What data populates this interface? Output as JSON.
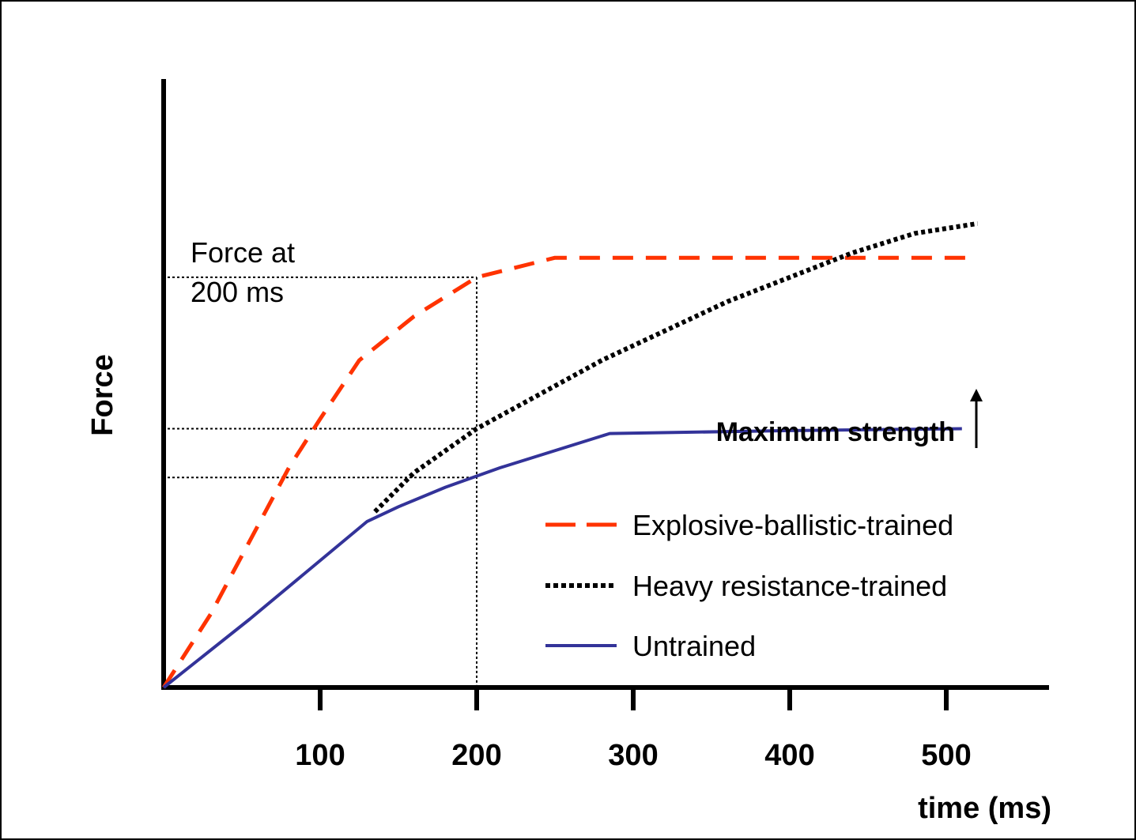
{
  "chart_data": {
    "type": "line",
    "title": "",
    "xlabel": "time (ms)",
    "ylabel": "Force",
    "x_ticks": [
      "100",
      "200",
      "300",
      "400",
      "500"
    ],
    "xlim": [
      0,
      560
    ],
    "ylim": [
      0,
      100
    ],
    "grid": false,
    "legend_position": "lower-right",
    "series": [
      {
        "name": "Explosive-ballistic-trained",
        "style": "dashed",
        "color": "#ff3300",
        "points": [
          [
            0,
            0
          ],
          [
            30,
            15
          ],
          [
            60,
            33
          ],
          [
            80,
            45
          ],
          [
            100,
            55
          ],
          [
            125,
            67
          ],
          [
            160,
            76
          ],
          [
            200,
            84
          ],
          [
            250,
            88
          ],
          [
            300,
            88
          ],
          [
            400,
            88
          ],
          [
            520,
            88
          ]
        ]
      },
      {
        "name": "Heavy resistance-trained",
        "style": "dotted",
        "color": "#000000",
        "points": [
          [
            135,
            36
          ],
          [
            160,
            44
          ],
          [
            200,
            53
          ],
          [
            240,
            60
          ],
          [
            280,
            67
          ],
          [
            320,
            73
          ],
          [
            360,
            79
          ],
          [
            400,
            84
          ],
          [
            440,
            89
          ],
          [
            480,
            93
          ],
          [
            520,
            95
          ]
        ]
      },
      {
        "name": "Untrained",
        "style": "solid",
        "color": "#333399",
        "points": [
          [
            0,
            0
          ],
          [
            55,
            14
          ],
          [
            130,
            34
          ],
          [
            150,
            37
          ],
          [
            180,
            41
          ],
          [
            215,
            45
          ],
          [
            285,
            52
          ],
          [
            400,
            52.6
          ],
          [
            510,
            53
          ]
        ]
      }
    ],
    "annotations": [
      {
        "text_lines": [
          "Force at",
          "200 ms"
        ]
      },
      {
        "text": "Maximum strength",
        "arrow": "up"
      }
    ],
    "reference_lines": {
      "vertical_x": 200,
      "horizontal_y": [
        84,
        53,
        43
      ]
    }
  }
}
